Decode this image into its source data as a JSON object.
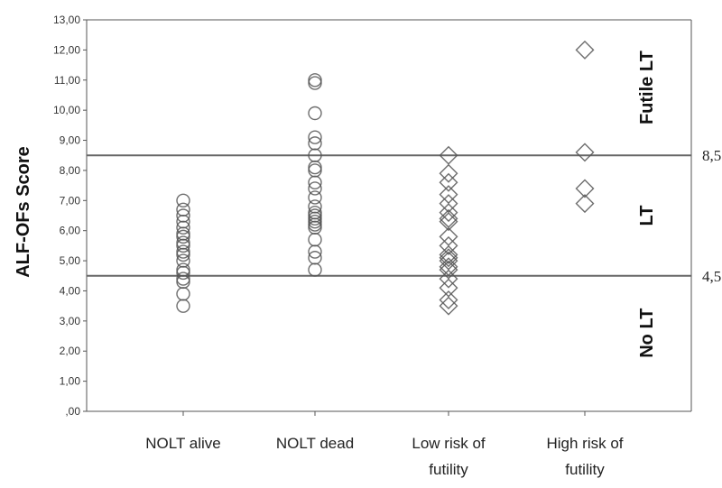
{
  "chart_data": {
    "type": "scatter",
    "title": "",
    "xlabel": "",
    "ylabel": "ALF-OFs  Score",
    "ylim": [
      0,
      13
    ],
    "yticks": [
      ",00",
      "1,00",
      "2,00",
      "3,00",
      "4,00",
      "5,00",
      "6,00",
      "7,00",
      "8,00",
      "9,00",
      "10,00",
      "11,00",
      "12,00",
      "13,00"
    ],
    "categories": [
      {
        "lines": [
          "NOLT alive"
        ]
      },
      {
        "lines": [
          "NOLT dead"
        ]
      },
      {
        "lines": [
          "Low risk of",
          "futility"
        ]
      },
      {
        "lines": [
          "High risk of",
          "futility"
        ]
      }
    ],
    "series": [
      {
        "category_index": 0,
        "marker": "circle",
        "values": [
          3.5,
          3.9,
          4.3,
          4.4,
          4.6,
          4.7,
          5.0,
          5.2,
          5.3,
          5.5,
          5.6,
          5.8,
          5.9,
          6.1,
          6.3,
          6.5,
          6.7,
          7.0
        ]
      },
      {
        "category_index": 1,
        "marker": "circle",
        "values": [
          4.7,
          5.1,
          5.3,
          5.7,
          6.1,
          6.2,
          6.3,
          6.4,
          6.5,
          6.6,
          6.8,
          7.1,
          7.4,
          7.6,
          8.0,
          8.1,
          8.5,
          8.9,
          9.1,
          9.9,
          10.9,
          11.0
        ]
      },
      {
        "category_index": 2,
        "marker": "diamond",
        "values": [
          3.5,
          3.7,
          4.1,
          4.4,
          4.7,
          4.8,
          5.0,
          5.1,
          5.2,
          5.5,
          5.8,
          6.3,
          6.4,
          6.6,
          6.9,
          7.2,
          7.6,
          7.9,
          8.5
        ]
      },
      {
        "category_index": 3,
        "marker": "diamond",
        "values": [
          6.9,
          7.4,
          8.6,
          12.0
        ]
      }
    ],
    "reference_lines": [
      {
        "value": 8.5,
        "label": "8,5"
      },
      {
        "value": 4.5,
        "label": "4,5"
      }
    ],
    "zones": [
      {
        "label": "Futile LT",
        "y_center": 10.75
      },
      {
        "label": "LT",
        "y_center": 6.5
      },
      {
        "label": "No LT",
        "y_center": 2.6
      }
    ],
    "grid": false,
    "legend": "none"
  }
}
